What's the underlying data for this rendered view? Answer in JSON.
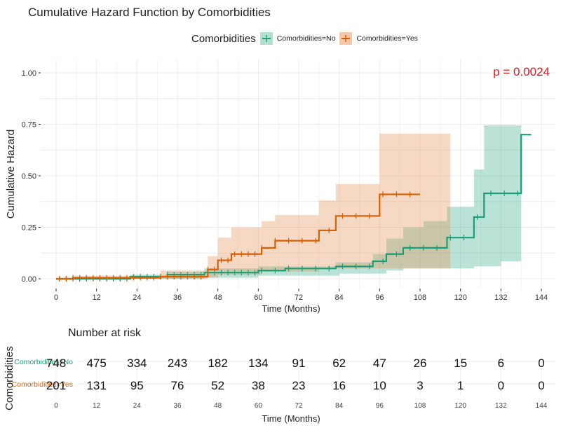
{
  "chart_data": {
    "type": "line",
    "title": "Cumulative Hazard Function by Comorbidities",
    "xlabel": "Time (Months)",
    "ylabel": "Cumulative Hazard",
    "xlim": [
      0,
      144
    ],
    "ylim": [
      0,
      1.0
    ],
    "x_ticks": [
      0,
      12,
      24,
      36,
      48,
      60,
      72,
      84,
      96,
      108,
      120,
      132,
      144
    ],
    "y_ticks": [
      "0.00",
      "0.25",
      "0.50",
      "0.75",
      "1.00"
    ],
    "y_tick_values": [
      0,
      0.25,
      0.5,
      0.75,
      1.0
    ],
    "grid": true,
    "legend": {
      "title": "Comorbidities",
      "position": "top",
      "entries": [
        "Comorbidities=No",
        "Comorbidities=Yes"
      ]
    },
    "annotation": "p = 0.0024",
    "series": [
      {
        "name": "Comorbidities=No",
        "color": "#1b9e77",
        "fill": "#1b9e77",
        "steps": [
          [
            0,
            0.0
          ],
          [
            22,
            0.01
          ],
          [
            33,
            0.02
          ],
          [
            44,
            0.03
          ],
          [
            60,
            0.04
          ],
          [
            68,
            0.05
          ],
          [
            83,
            0.06
          ],
          [
            94,
            0.085
          ],
          [
            98,
            0.12
          ],
          [
            103,
            0.15
          ],
          [
            116,
            0.2
          ],
          [
            124,
            0.3
          ],
          [
            127,
            0.415
          ],
          [
            138,
            0.7
          ],
          [
            141,
            0.7
          ]
        ],
        "lower": [
          [
            0,
            0.0
          ],
          [
            22,
            0.0
          ],
          [
            44,
            0.005
          ],
          [
            60,
            0.015
          ],
          [
            84,
            0.025
          ],
          [
            98,
            0.04
          ],
          [
            103,
            0.05
          ],
          [
            114,
            0.05
          ],
          [
            124,
            0.06
          ],
          [
            132,
            0.085
          ],
          [
            138,
            0.085
          ]
        ],
        "upper": [
          [
            0,
            0.0
          ],
          [
            22,
            0.02
          ],
          [
            33,
            0.035
          ],
          [
            44,
            0.05
          ],
          [
            60,
            0.06
          ],
          [
            83,
            0.08
          ],
          [
            94,
            0.12
          ],
          [
            98,
            0.195
          ],
          [
            103,
            0.25
          ],
          [
            109,
            0.28
          ],
          [
            116,
            0.35
          ],
          [
            124,
            0.53
          ],
          [
            127,
            0.745
          ],
          [
            138,
            0.745
          ]
        ]
      },
      {
        "name": "Comorbidities=Yes",
        "color": "#d95f02",
        "fill": "#e6935a",
        "steps": [
          [
            0,
            0.0
          ],
          [
            5,
            0.005
          ],
          [
            31,
            0.01
          ],
          [
            45,
            0.045
          ],
          [
            48,
            0.09
          ],
          [
            52,
            0.12
          ],
          [
            61,
            0.15
          ],
          [
            65,
            0.185
          ],
          [
            78,
            0.235
          ],
          [
            83,
            0.305
          ],
          [
            96,
            0.41
          ],
          [
            108,
            0.41
          ]
        ],
        "lower": [
          [
            0,
            0.0
          ],
          [
            31,
            0.0
          ],
          [
            45,
            0.005
          ],
          [
            48,
            0.02
          ],
          [
            61,
            0.035
          ],
          [
            78,
            0.05
          ],
          [
            96,
            0.05
          ],
          [
            113,
            0.05
          ],
          [
            117,
            0.05
          ]
        ],
        "upper": [
          [
            0,
            0.0
          ],
          [
            5,
            0.015
          ],
          [
            31,
            0.04
          ],
          [
            45,
            0.11
          ],
          [
            48,
            0.2
          ],
          [
            52,
            0.25
          ],
          [
            61,
            0.28
          ],
          [
            65,
            0.31
          ],
          [
            78,
            0.38
          ],
          [
            83,
            0.46
          ],
          [
            96,
            0.705
          ],
          [
            117,
            0.705
          ]
        ]
      }
    ],
    "risk_table": {
      "title": "Number at risk",
      "ylabel": "Comorbidities",
      "xlabel": "Time (Months)",
      "times": [
        0,
        12,
        24,
        36,
        48,
        60,
        72,
        84,
        96,
        108,
        120,
        132,
        144
      ],
      "rows": [
        {
          "label": "Comorbidities=No",
          "color": "#1b9e77",
          "values": [
            748,
            475,
            334,
            243,
            182,
            134,
            91,
            62,
            47,
            26,
            15,
            6,
            0
          ]
        },
        {
          "label": "Comorbidities=Yes",
          "color": "#d95f02",
          "values": [
            201,
            131,
            95,
            76,
            52,
            38,
            23,
            16,
            10,
            3,
            1,
            0,
            0
          ]
        }
      ]
    }
  },
  "legend_title": "Comorbidities",
  "legend_no": "Comorbidities=No",
  "legend_yes": "Comorbidities=Yes",
  "title": "Cumulative Hazard Function by Comorbidities"
}
